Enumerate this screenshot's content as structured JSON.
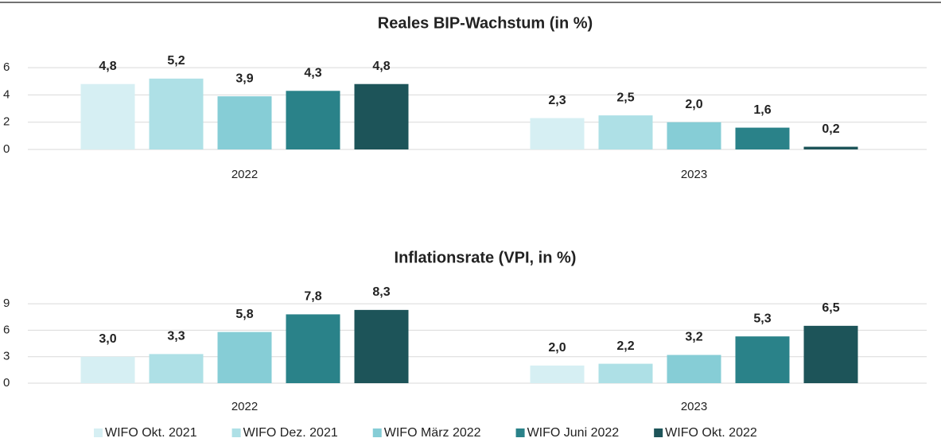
{
  "chart_data": [
    {
      "type": "bar",
      "title": "Reales BIP-Wachstum  (in %)",
      "categories": [
        "2022",
        "2023"
      ],
      "ylim": [
        0,
        7
      ],
      "yticks": [
        0,
        2,
        4,
        6
      ],
      "grid": true,
      "series": [
        {
          "color": "#d6eff3",
          "values": [
            4.8,
            2.3
          ],
          "value_labels": [
            "4,8",
            "2,3"
          ]
        },
        {
          "color": "#aee0e6",
          "values": [
            5.2,
            2.5
          ],
          "value_labels": [
            "5,2",
            "2,5"
          ]
        },
        {
          "color": "#86cdd6",
          "values": [
            3.9,
            2.0
          ],
          "value_labels": [
            "3,9",
            "2,0"
          ]
        },
        {
          "color": "#2a8289",
          "values": [
            4.3,
            1.6
          ],
          "value_labels": [
            "4,3",
            "1,6"
          ]
        },
        {
          "color": "#1d5459",
          "values": [
            4.8,
            0.2
          ],
          "value_labels": [
            "4,8",
            "0,2"
          ]
        }
      ]
    },
    {
      "type": "bar",
      "title": "Inflationsrate  (VPI, in %)",
      "categories": [
        "2022",
        "2023"
      ],
      "ylim": [
        0,
        10
      ],
      "yticks": [
        0,
        3,
        6,
        9
      ],
      "grid": true,
      "legend": "bottom",
      "series": [
        {
          "name": "WIFO Okt. 2021",
          "color": "#d6eff3",
          "values": [
            3.0,
            2.0
          ],
          "value_labels": [
            "3,0",
            "2,0"
          ]
        },
        {
          "name": "WIFO Dez. 2021",
          "color": "#aee0e6",
          "values": [
            3.3,
            2.2
          ],
          "value_labels": [
            "3,3",
            "2,2"
          ]
        },
        {
          "name": "WIFO März 2022",
          "color": "#86cdd6",
          "values": [
            5.8,
            3.2
          ],
          "value_labels": [
            "5,8",
            "3,2"
          ]
        },
        {
          "name": "WIFO Juni 2022",
          "color": "#2a8289",
          "values": [
            7.8,
            5.3
          ],
          "value_labels": [
            "7,8",
            "5,3"
          ]
        },
        {
          "name": "WIFO Okt. 2022",
          "color": "#1d5459",
          "values": [
            8.3,
            6.5
          ],
          "value_labels": [
            "8,3",
            "6,5"
          ]
        }
      ]
    }
  ]
}
